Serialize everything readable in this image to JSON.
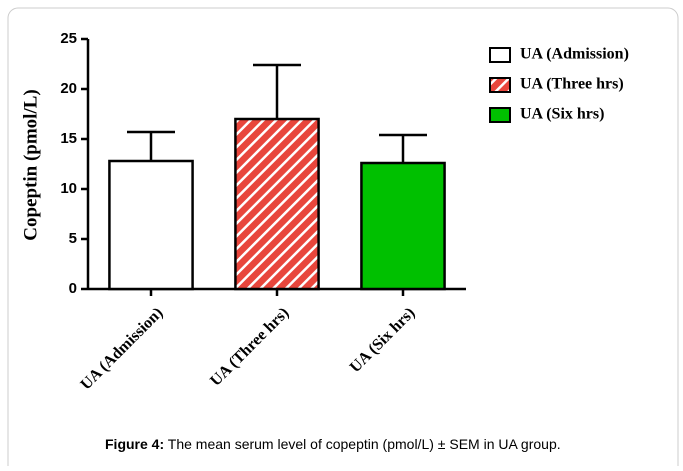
{
  "chart_data": {
    "type": "bar",
    "ylabel": "Copeptin (pmol/L)",
    "categories": [
      "UA (Admission)",
      "UA (Three hrs)",
      "UA (Six hrs)"
    ],
    "values": [
      12.8,
      17.0,
      12.6
    ],
    "errors": [
      2.9,
      5.4,
      2.8
    ],
    "colors": [
      "#ffffff",
      "#e8463c",
      "#00c000"
    ],
    "hatch": [
      false,
      true,
      false
    ],
    "ylim": [
      0,
      25
    ],
    "yticks": [
      0,
      5,
      10,
      15,
      20,
      25
    ],
    "legend": "right",
    "caption_label": "Figure 4:",
    "caption": "The mean serum level of copeptin (pmol/L) ± SEM in UA group."
  }
}
